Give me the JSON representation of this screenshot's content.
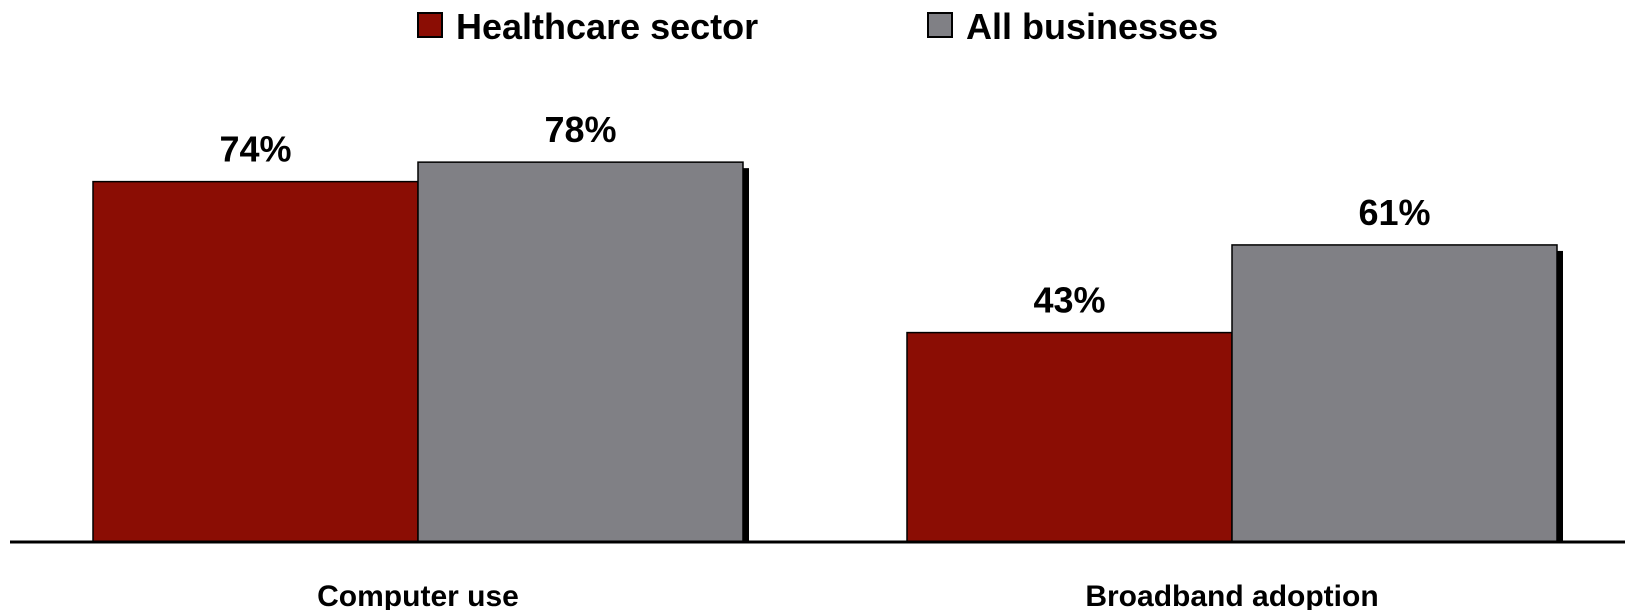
{
  "chart_data": {
    "type": "bar",
    "categories": [
      "Computer use",
      "Broadband adoption"
    ],
    "series": [
      {
        "name": "Healthcare sector",
        "values": [
          74,
          43
        ],
        "labels": [
          "74%",
          "43%"
        ],
        "color": "#8b0d04"
      },
      {
        "name": "All businesses",
        "values": [
          78,
          61
        ],
        "labels": [
          "78%",
          "61%"
        ],
        "color": "#808085"
      }
    ],
    "ylim": [
      0,
      100
    ],
    "legend": "top-center",
    "grid": false,
    "title": "",
    "xlabel": "",
    "ylabel": ""
  }
}
